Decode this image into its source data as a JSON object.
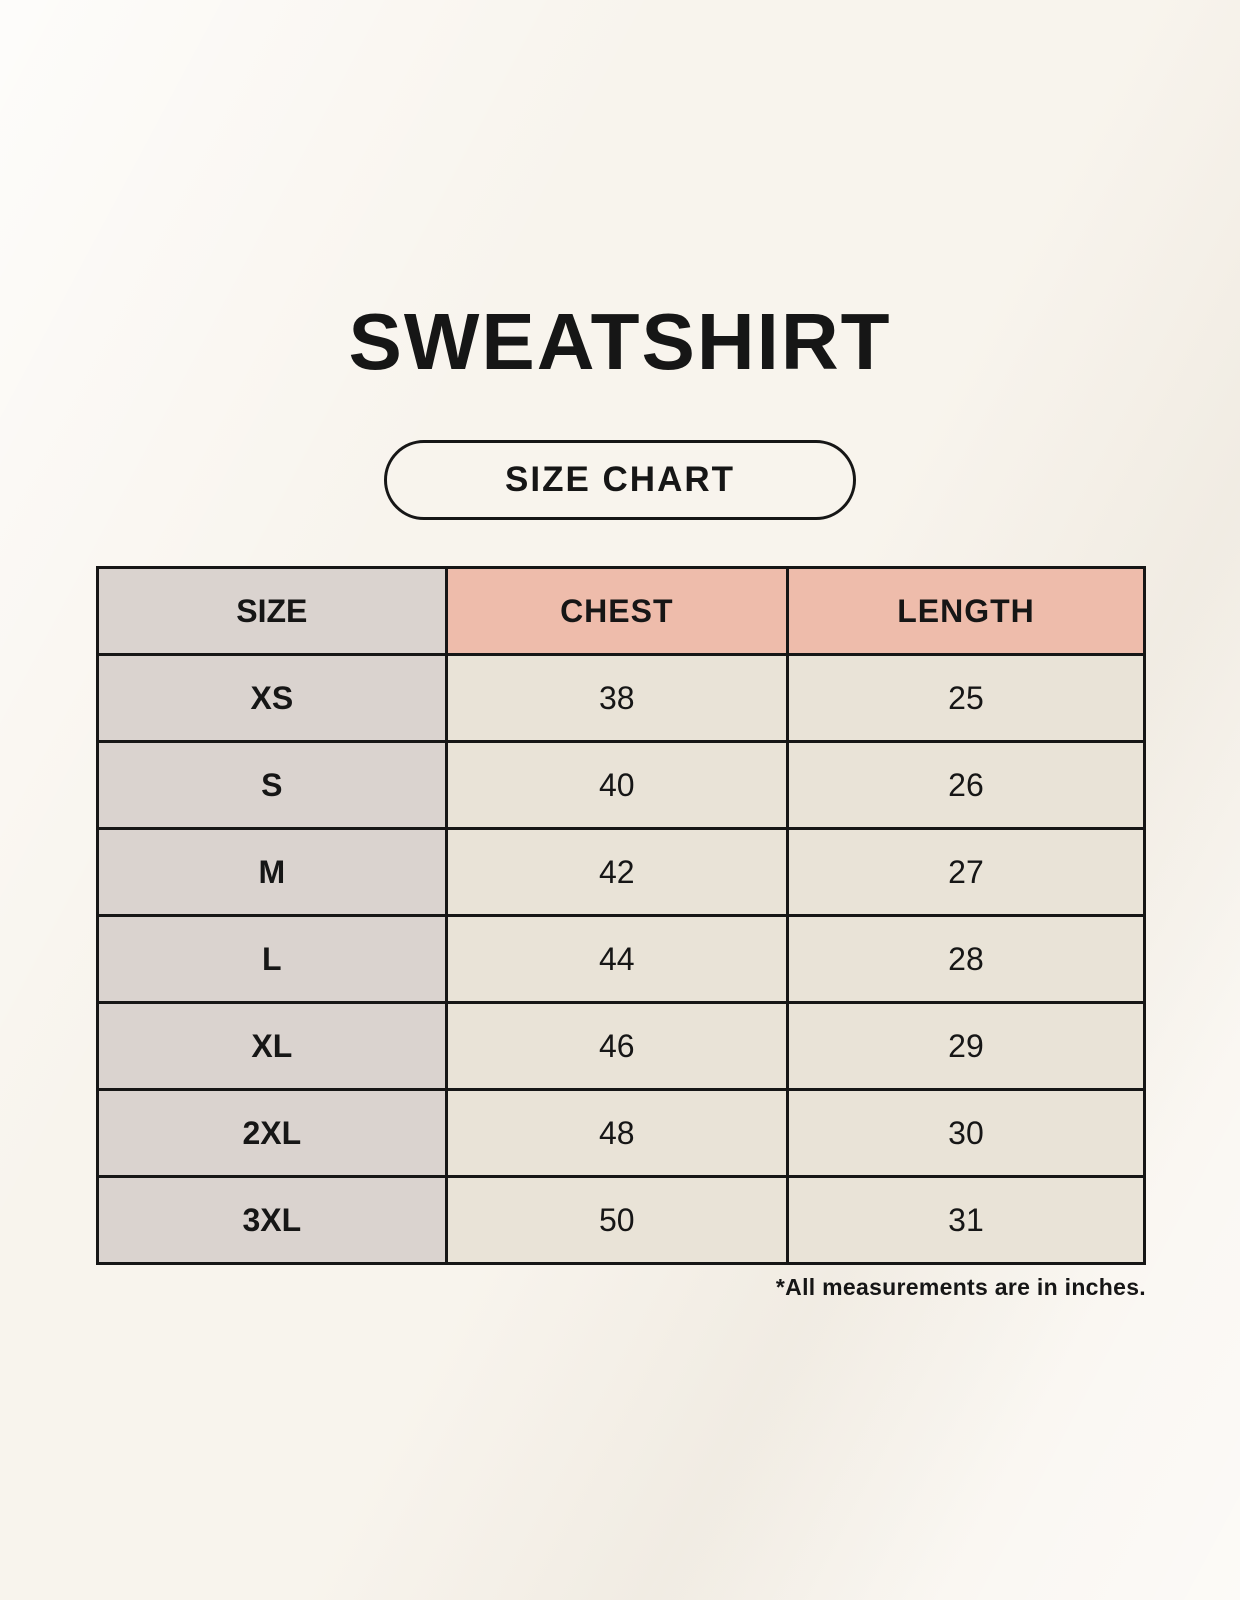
{
  "header": {
    "title": "SWEATSHIRT",
    "badge_label": "SIZE CHART"
  },
  "chart_data": {
    "type": "table",
    "title": "SWEATSHIRT SIZE CHART",
    "columns": [
      "SIZE",
      "CHEST",
      "LENGTH"
    ],
    "rows": [
      [
        "XS",
        "38",
        "25"
      ],
      [
        "S",
        "40",
        "26"
      ],
      [
        "M",
        "42",
        "27"
      ],
      [
        "L",
        "44",
        "28"
      ],
      [
        "XL",
        "46",
        "29"
      ],
      [
        "2XL",
        "48",
        "30"
      ],
      [
        "3XL",
        "50",
        "31"
      ]
    ],
    "units": "inches"
  },
  "footer": {
    "note": "*All measurements are in inches."
  },
  "colors": {
    "background": "#f8f4ed",
    "header_accent": "#eebcab",
    "size_column": "#dad3cf",
    "data_cell": "#e9e3d7",
    "border": "#161616",
    "text": "#161616"
  }
}
